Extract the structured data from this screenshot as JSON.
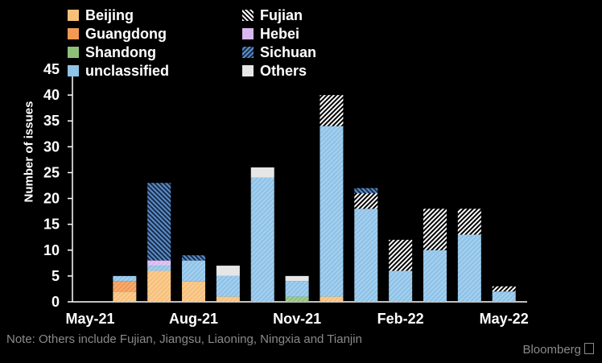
{
  "chart_data": {
    "type": "bar",
    "stacked": true,
    "ylabel": "Number of issues",
    "ylim": [
      0,
      45
    ],
    "yticks": [
      0,
      5,
      10,
      15,
      20,
      25,
      30,
      35,
      40,
      45
    ],
    "x_tick_labels": [
      "May-21",
      "Aug-21",
      "Nov-21",
      "Feb-22",
      "May-22"
    ],
    "categories": [
      "May-21",
      "Jun-21",
      "Jul-21",
      "Aug-21",
      "Sep-21",
      "Oct-21",
      "Nov-21",
      "Dec-21",
      "Jan-22",
      "Feb-22",
      "Mar-22",
      "Apr-22",
      "May-22"
    ],
    "series": [
      {
        "name": "Beijing",
        "color": "#f7c07a",
        "pattern": "hatch",
        "values": [
          0,
          2,
          6,
          4,
          1,
          0,
          0,
          1,
          0,
          0,
          0,
          0,
          0
        ]
      },
      {
        "name": "Guangdong",
        "color": "#f29a55",
        "pattern": "hatch",
        "values": [
          0,
          2,
          0,
          0,
          0,
          0,
          0,
          0,
          0,
          0,
          0,
          0,
          0
        ]
      },
      {
        "name": "Shandong",
        "color": "#8fc07a",
        "pattern": "hatch",
        "values": [
          0,
          0,
          0,
          0,
          0,
          0,
          1,
          0,
          0,
          0,
          0,
          0,
          0
        ]
      },
      {
        "name": "unclassified",
        "color": "#8fc3e8",
        "pattern": "hatch",
        "values": [
          0,
          1,
          1,
          4,
          4,
          24,
          3,
          33,
          18,
          6,
          10,
          13,
          2
        ]
      },
      {
        "name": "Fujian",
        "color": "#ffffff",
        "pattern": "stripe",
        "values": [
          0,
          0,
          0,
          0,
          0,
          0,
          0,
          6,
          3,
          6,
          8,
          5,
          1
        ]
      },
      {
        "name": "Hebei",
        "color": "#d9b8f0",
        "pattern": "hatch",
        "values": [
          0,
          0,
          1,
          0,
          0,
          0,
          0,
          0,
          0,
          0,
          0,
          0,
          0
        ]
      },
      {
        "name": "Sichuan",
        "color": "#5b8fc8",
        "pattern": "dense",
        "values": [
          0,
          0,
          15,
          1,
          0,
          0,
          0,
          0,
          1,
          0,
          0,
          0,
          0
        ]
      },
      {
        "name": "Others",
        "color": "#e6e6e6",
        "pattern": "solid",
        "values": [
          0,
          0,
          0,
          0,
          2,
          2,
          1,
          0,
          0,
          0,
          0,
          0,
          0
        ]
      }
    ]
  },
  "note": "Note: Others include Fujian, Jiangsu, Liaoning, Ningxia and Tianjin",
  "brand": "Bloomberg"
}
